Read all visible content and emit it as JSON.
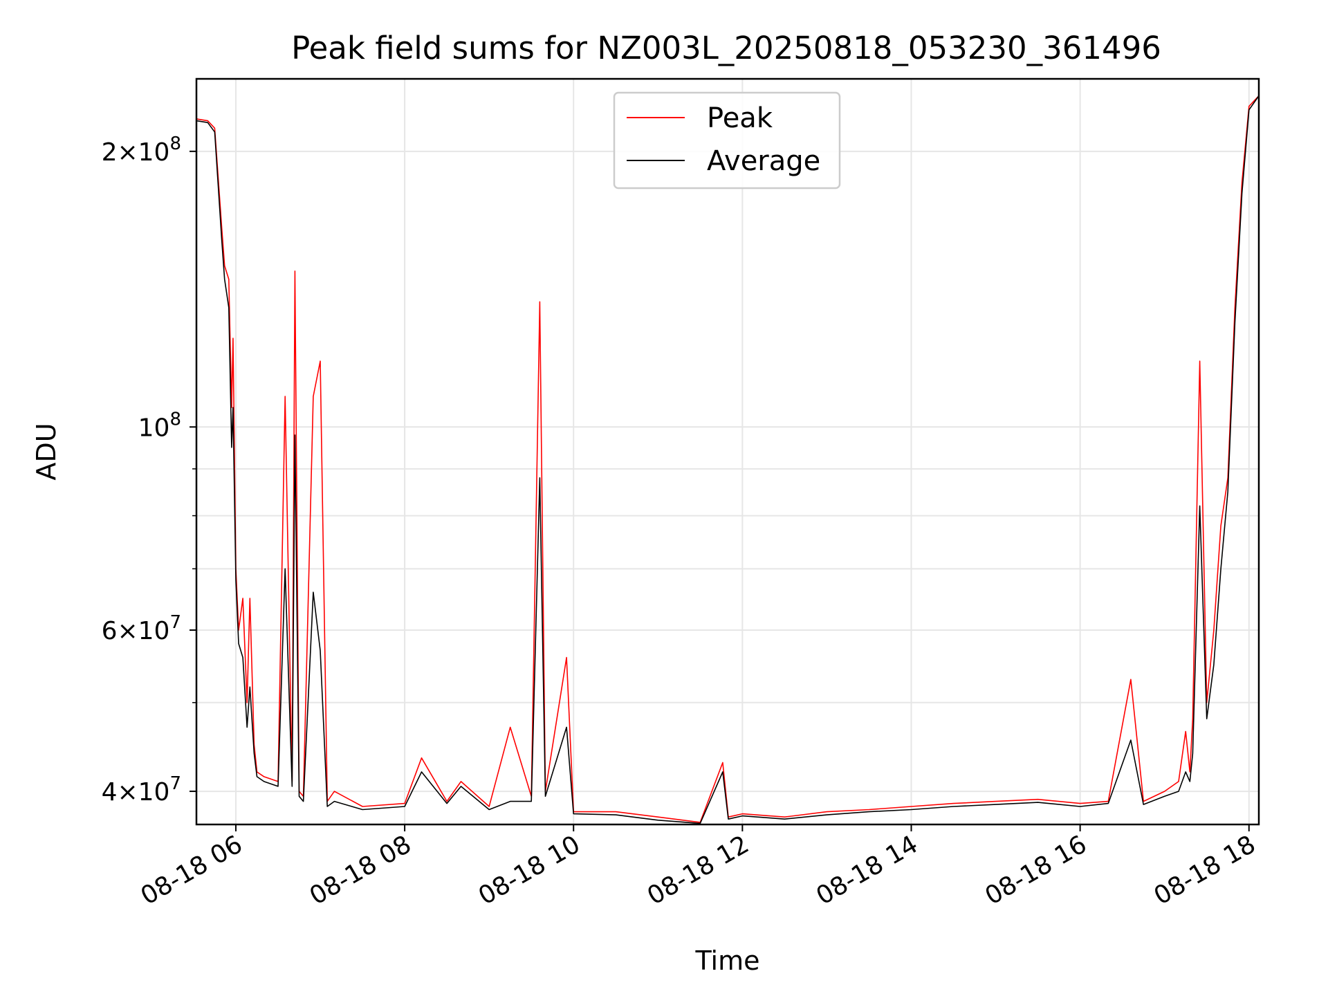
{
  "chart_data": {
    "type": "line",
    "title": "Peak field sums for NZ003L_20250818_053230_361496",
    "xlabel": "Time",
    "ylabel": "ADU",
    "y_scale": "log",
    "xlim": [
      "2025-08-18T05:32",
      "2025-08-18T18:07"
    ],
    "ylim": [
      36800000,
      240000000
    ],
    "grid": true,
    "legend_position": "top-center",
    "x_tick_labels": [
      "08-18 06",
      "08-18 08",
      "08-18 10",
      "08-18 12",
      "08-18 14",
      "08-18 16",
      "08-18 18"
    ],
    "x_ticks": [
      "2025-08-18T06:00",
      "2025-08-18T08:00",
      "2025-08-18T10:00",
      "2025-08-18T12:00",
      "2025-08-18T14:00",
      "2025-08-18T16:00",
      "2025-08-18T18:00"
    ],
    "y_tick_labels": [
      {
        "value": 40000000,
        "mantissa": "4",
        "exp": "7"
      },
      {
        "value": 60000000,
        "mantissa": "6",
        "exp": "7"
      },
      {
        "value": 100000000,
        "mantissa": "",
        "exp": "8"
      },
      {
        "value": 200000000,
        "mantissa": "2",
        "exp": "8"
      }
    ],
    "y_minor_ticks": [
      50000000,
      70000000,
      80000000,
      90000000
    ],
    "series": [
      {
        "name": "Peak",
        "color": "#ff0000",
        "x": [
          "2025-08-18T05:32",
          "2025-08-18T05:40",
          "2025-08-18T05:45",
          "05:50",
          "05:52",
          "05:55",
          "05:57",
          "05:58",
          "06:00",
          "06:02",
          "06:05",
          "06:08",
          "06:10",
          "06:13",
          "06:15",
          "06:20",
          "06:30",
          "06:35",
          "06:40",
          "06:42",
          "06:45",
          "06:48",
          "06:55",
          "07:00",
          "07:05",
          "07:10",
          "07:30",
          "08:00",
          "08:12",
          "08:30",
          "08:40",
          "09:00",
          "09:15",
          "09:30",
          "09:36",
          "09:40",
          "09:55",
          "10:00",
          "10:30",
          "11:00",
          "11:30",
          "11:46",
          "11:50",
          "12:00",
          "12:30",
          "13:00",
          "13:30",
          "14:00",
          "14:30",
          "15:00",
          "15:30",
          "16:00",
          "16:20",
          "16:36",
          "16:45",
          "17:00",
          "17:10",
          "17:15",
          "17:18",
          "17:20",
          "17:25",
          "17:30",
          "17:35",
          "17:40",
          "17:45",
          "17:50",
          "17:55",
          "18:00",
          "18:07"
        ],
        "y": [
          217000000,
          216000000,
          212000000,
          165000000,
          150000000,
          145000000,
          105000000,
          125000000,
          70000000,
          60000000,
          65000000,
          50000000,
          65000000,
          45000000,
          42000000,
          41500000,
          41000000,
          108000000,
          41000000,
          148000000,
          40000000,
          39500000,
          108000000,
          118000000,
          39000000,
          40000000,
          38500000,
          38800000,
          43500000,
          39000000,
          41000000,
          38500000,
          47000000,
          39500000,
          137000000,
          40000000,
          56000000,
          38000000,
          38000000,
          37500000,
          37000000,
          43000000,
          37500000,
          37800000,
          37500000,
          38000000,
          38200000,
          38500000,
          38800000,
          39000000,
          39200000,
          38800000,
          39000000,
          53000000,
          39000000,
          40000000,
          41000000,
          46500000,
          42000000,
          48000000,
          118000000,
          50000000,
          60000000,
          78000000,
          88000000,
          135000000,
          185000000,
          224000000,
          230000000
        ]
      },
      {
        "name": "Average",
        "color": "#000000",
        "x": [
          "2025-08-18T05:32",
          "2025-08-18T05:40",
          "2025-08-18T05:45",
          "05:50",
          "05:52",
          "05:55",
          "05:57",
          "05:58",
          "06:00",
          "06:02",
          "06:05",
          "06:08",
          "06:10",
          "06:13",
          "06:15",
          "06:20",
          "06:30",
          "06:35",
          "06:40",
          "06:42",
          "06:45",
          "06:48",
          "06:55",
          "07:00",
          "07:05",
          "07:10",
          "07:30",
          "08:00",
          "08:12",
          "08:30",
          "08:40",
          "09:00",
          "09:15",
          "09:30",
          "09:36",
          "09:40",
          "09:55",
          "10:00",
          "10:30",
          "11:00",
          "11:30",
          "11:46",
          "11:50",
          "12:00",
          "12:30",
          "13:00",
          "13:30",
          "14:00",
          "14:30",
          "15:00",
          "15:30",
          "16:00",
          "16:20",
          "16:36",
          "16:45",
          "17:00",
          "17:10",
          "17:15",
          "17:18",
          "17:20",
          "17:25",
          "17:30",
          "17:35",
          "17:40",
          "17:45",
          "17:50",
          "17:55",
          "18:00",
          "18:07"
        ],
        "y": [
          216000000,
          215000000,
          210000000,
          160000000,
          145000000,
          135000000,
          95000000,
          105000000,
          68000000,
          58000000,
          56000000,
          47000000,
          52000000,
          44000000,
          41500000,
          41000000,
          40500000,
          70000000,
          40500000,
          98000000,
          39500000,
          39000000,
          66000000,
          57000000,
          38500000,
          39000000,
          38200000,
          38500000,
          42000000,
          38800000,
          40500000,
          38200000,
          39000000,
          39000000,
          88000000,
          39500000,
          47000000,
          37800000,
          37700000,
          37200000,
          36900000,
          42000000,
          37300000,
          37600000,
          37300000,
          37700000,
          38000000,
          38200000,
          38500000,
          38700000,
          38900000,
          38500000,
          38800000,
          45500000,
          38700000,
          39500000,
          40000000,
          42000000,
          41000000,
          44000000,
          82000000,
          48000000,
          55000000,
          70000000,
          85000000,
          130000000,
          180000000,
          222000000,
          230000000
        ]
      }
    ]
  }
}
